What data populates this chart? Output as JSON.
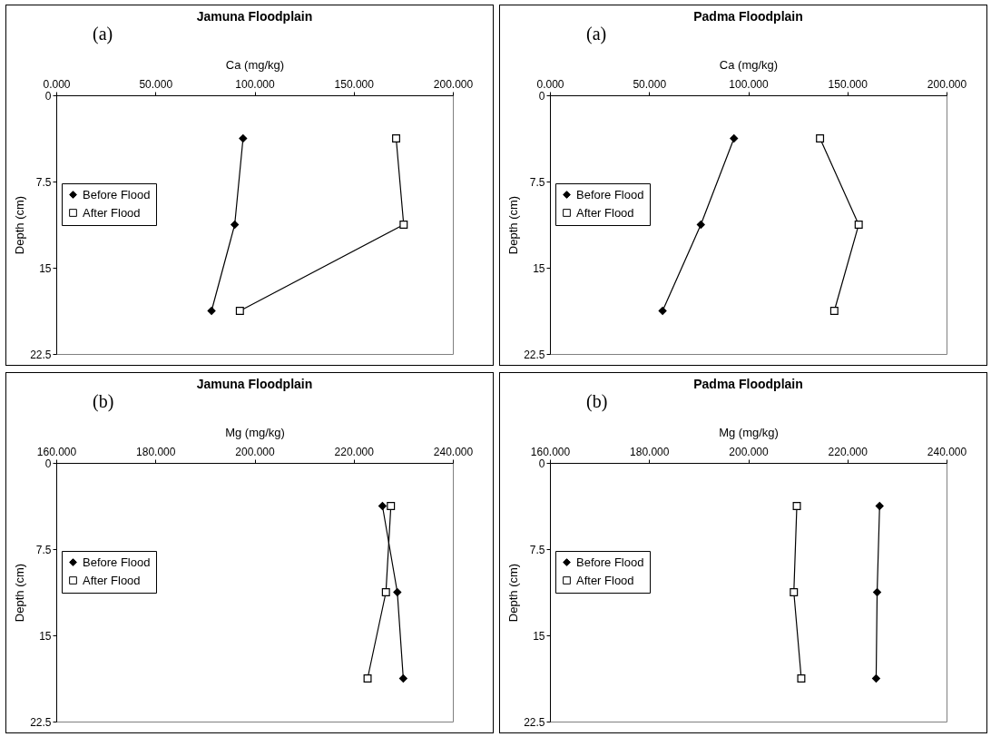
{
  "chart_data": [
    {
      "type": "line",
      "title": "Jamuna Floodplain",
      "xlabel": "Ca (mg/kg)",
      "ylabel": "Depth (cm)",
      "annotations": [
        "(a)"
      ],
      "xlim": [
        0,
        200
      ],
      "xticks": [
        {
          "value": 0,
          "label": "0.000"
        },
        {
          "value": 50,
          "label": "50.000"
        },
        {
          "value": 100,
          "label": "100.000"
        },
        {
          "value": 150,
          "label": "150.000"
        },
        {
          "value": 200,
          "label": "200.000"
        }
      ],
      "ylim": [
        22.5,
        0
      ],
      "yticks": [
        0,
        7.5,
        15,
        22.5
      ],
      "grid": false,
      "legend": "left",
      "series": [
        {
          "name": "Before Flood",
          "color": "#000000",
          "marker": "diamond",
          "x": [
            94.2,
            90.0,
            78.3
          ],
          "values": [
            3.75,
            11.25,
            18.75
          ]
        },
        {
          "name": "After Flood",
          "color": "#000000",
          "marker": "square",
          "x": [
            171.4,
            175.2,
            92.6
          ],
          "values": [
            3.75,
            11.25,
            18.75
          ]
        }
      ]
    },
    {
      "type": "line",
      "title": "Padma Floodplain",
      "xlabel": "Ca (mg/kg)",
      "ylabel": "Depth (cm)",
      "annotations": [
        "(a)"
      ],
      "xlim": [
        0,
        200
      ],
      "xticks": [
        {
          "value": 0,
          "label": "0.000"
        },
        {
          "value": 50,
          "label": "50.000"
        },
        {
          "value": 100,
          "label": "100.000"
        },
        {
          "value": 150,
          "label": "150.000"
        },
        {
          "value": 200,
          "label": "200.000"
        }
      ],
      "ylim": [
        22.5,
        0
      ],
      "yticks": [
        0,
        7.5,
        15,
        22.5
      ],
      "grid": false,
      "legend": "left",
      "series": [
        {
          "name": "Before Flood",
          "color": "#000000",
          "marker": "diamond",
          "x": [
            92.8,
            76.1,
            56.8
          ],
          "values": [
            3.75,
            11.25,
            18.75
          ]
        },
        {
          "name": "After Flood",
          "color": "#000000",
          "marker": "square",
          "x": [
            136.2,
            155.7,
            143.4
          ],
          "values": [
            3.75,
            11.25,
            18.75
          ]
        }
      ]
    },
    {
      "type": "line",
      "title": "Jamuna Floodplain",
      "xlabel": "Mg (mg/kg)",
      "ylabel": "Depth (cm)",
      "annotations": [
        "(b)"
      ],
      "xlim": [
        160,
        240
      ],
      "xticks": [
        {
          "value": 160,
          "label": "160.000"
        },
        {
          "value": 180,
          "label": "180.000"
        },
        {
          "value": 200,
          "label": "200.000"
        },
        {
          "value": 220,
          "label": "220.000"
        },
        {
          "value": 240,
          "label": "240.000"
        }
      ],
      "ylim": [
        22.5,
        0
      ],
      "yticks": [
        0,
        7.5,
        15,
        22.5
      ],
      "grid": false,
      "legend": "left",
      "series": [
        {
          "name": "Before Flood",
          "color": "#000000",
          "marker": "diamond",
          "x": [
            225.8,
            228.8,
            230.0
          ],
          "values": [
            3.75,
            11.25,
            18.75
          ]
        },
        {
          "name": "After Flood",
          "color": "#000000",
          "marker": "square",
          "x": [
            227.5,
            226.5,
            222.8
          ],
          "values": [
            3.75,
            11.25,
            18.75
          ]
        }
      ]
    },
    {
      "type": "line",
      "title": "Padma Floodplain",
      "xlabel": "Mg (mg/kg)",
      "ylabel": "Depth (cm)",
      "annotations": [
        "(b)"
      ],
      "xlim": [
        160,
        240
      ],
      "xticks": [
        {
          "value": 160,
          "label": "160.000"
        },
        {
          "value": 180,
          "label": "180.000"
        },
        {
          "value": 200,
          "label": "200.000"
        },
        {
          "value": 220,
          "label": "220.000"
        },
        {
          "value": 240,
          "label": "240.000"
        }
      ],
      "ylim": [
        22.5,
        0
      ],
      "yticks": [
        0,
        7.5,
        15,
        22.5
      ],
      "grid": false,
      "legend": "left",
      "series": [
        {
          "name": "Before Flood",
          "color": "#000000",
          "marker": "diamond",
          "x": [
            226.5,
            226.0,
            225.8
          ],
          "values": [
            3.75,
            11.25,
            18.75
          ]
        },
        {
          "name": "After Flood",
          "color": "#000000",
          "marker": "square",
          "x": [
            209.8,
            209.2,
            210.7
          ],
          "values": [
            3.75,
            11.25,
            18.75
          ]
        }
      ]
    }
  ]
}
